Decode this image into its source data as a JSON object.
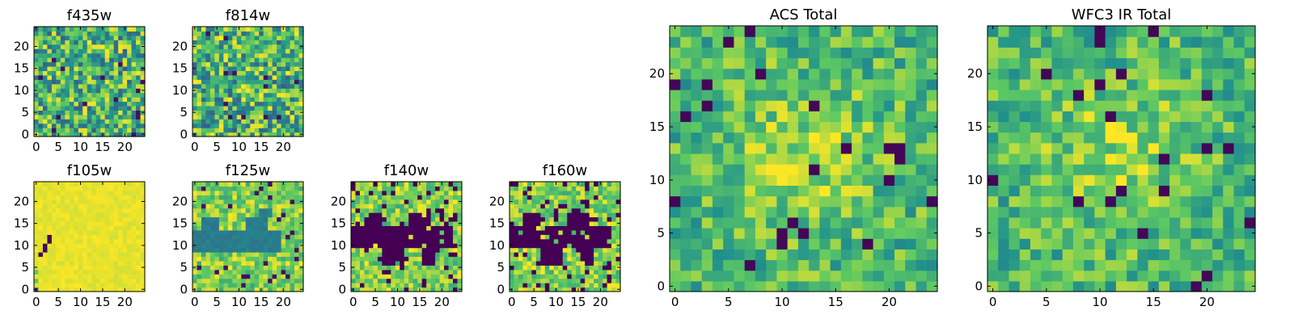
{
  "figure": {
    "colormap": "viridis",
    "colormap_stops": [
      "#440154",
      "#3b528b",
      "#21918c",
      "#5ec962",
      "#fde725"
    ]
  },
  "chart_data": [
    {
      "type": "heatmap",
      "title": "f435w",
      "rows": 25,
      "cols": 25,
      "xlim": [
        -0.5,
        24.5
      ],
      "ylim": [
        -0.5,
        24.5
      ],
      "xticks": [
        0,
        5,
        10,
        15,
        20
      ],
      "yticks": [
        0,
        5,
        10,
        15,
        20
      ],
      "pattern": "noise",
      "grid": false
    },
    {
      "type": "heatmap",
      "title": "f814w",
      "rows": 25,
      "cols": 25,
      "xlim": [
        -0.5,
        24.5
      ],
      "ylim": [
        -0.5,
        24.5
      ],
      "xticks": [
        0,
        5,
        10,
        15,
        20
      ],
      "yticks": [
        0,
        5,
        10,
        15,
        20
      ],
      "pattern": "noise",
      "grid": false
    },
    {
      "type": "heatmap",
      "title": "f105w",
      "rows": 25,
      "cols": 25,
      "xlim": [
        -0.5,
        24.5
      ],
      "ylim": [
        -0.5,
        24.5
      ],
      "xticks": [
        0,
        5,
        10,
        15,
        20
      ],
      "yticks": [
        0,
        5,
        10,
        15,
        20
      ],
      "pattern": "saturated",
      "grid": false
    },
    {
      "type": "heatmap",
      "title": "f125w",
      "rows": 25,
      "cols": 25,
      "xlim": [
        -0.5,
        24.5
      ],
      "ylim": [
        -0.5,
        24.5
      ],
      "xticks": [
        0,
        5,
        10,
        15,
        20
      ],
      "yticks": [
        0,
        5,
        10,
        15,
        20
      ],
      "pattern": "band",
      "grid": false
    },
    {
      "type": "heatmap",
      "title": "f140w",
      "rows": 25,
      "cols": 25,
      "xlim": [
        -0.5,
        24.5
      ],
      "ylim": [
        -0.5,
        24.5
      ],
      "xticks": [
        0,
        5,
        10,
        15,
        20
      ],
      "yticks": [
        0,
        5,
        10,
        15,
        20
      ],
      "pattern": "dark-band",
      "grid": false
    },
    {
      "type": "heatmap",
      "title": "f160w",
      "rows": 25,
      "cols": 25,
      "xlim": [
        -0.5,
        24.5
      ],
      "ylim": [
        -0.5,
        24.5
      ],
      "xticks": [
        0,
        5,
        10,
        15,
        20
      ],
      "yticks": [
        0,
        5,
        10,
        15,
        20
      ],
      "pattern": "dark-band",
      "grid": false
    },
    {
      "type": "heatmap",
      "title": "ACS Total",
      "rows": 25,
      "cols": 25,
      "xlim": [
        -0.5,
        24.5
      ],
      "ylim": [
        -0.5,
        24.5
      ],
      "xticks": [
        0,
        5,
        10,
        15,
        20
      ],
      "yticks": [
        0,
        5,
        10,
        15,
        20
      ],
      "pattern": "smooth",
      "grid": false
    },
    {
      "type": "heatmap",
      "title": "WFC3 IR Total",
      "rows": 25,
      "cols": 25,
      "xlim": [
        -0.5,
        24.5
      ],
      "ylim": [
        -0.5,
        24.5
      ],
      "xticks": [
        0,
        5,
        10,
        15,
        20
      ],
      "yticks": [
        0,
        5,
        10,
        15,
        20
      ],
      "pattern": "smooth",
      "grid": false
    }
  ]
}
